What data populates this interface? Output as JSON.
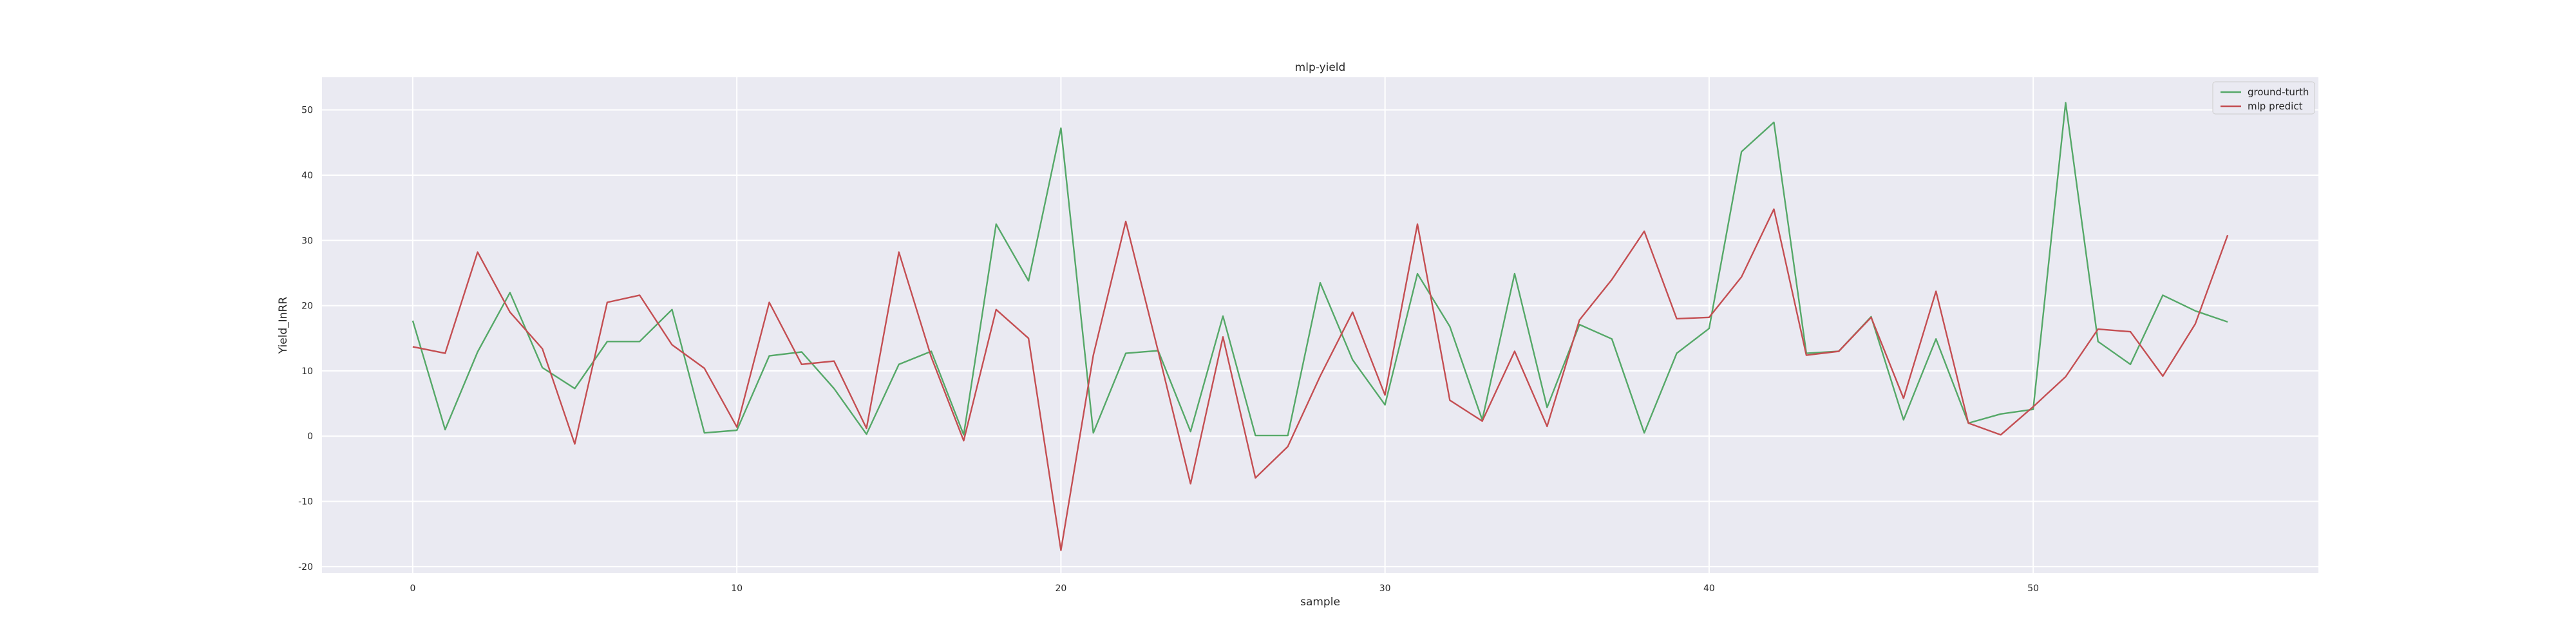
{
  "chart_data": {
    "type": "line",
    "title": "mlp-yield",
    "xlabel": "sample",
    "ylabel": "Yield_InRR",
    "xlim": [
      -2.8,
      58.8
    ],
    "ylim": [
      -21,
      55
    ],
    "xticks": [
      0,
      10,
      20,
      30,
      40,
      50
    ],
    "yticks": [
      -20,
      -10,
      0,
      10,
      20,
      30,
      40,
      50
    ],
    "grid": true,
    "legend_position": "top-right",
    "background_color": "#eaeaf2",
    "series": [
      {
        "name": "ground-turth",
        "color": "#55a868",
        "x": [
          0,
          1,
          2,
          3,
          4,
          5,
          6,
          7,
          8,
          9,
          10,
          11,
          12,
          13,
          14,
          15,
          16,
          17,
          18,
          19,
          20,
          21,
          22,
          23,
          24,
          25,
          26,
          27,
          28,
          29,
          30,
          31,
          32,
          33,
          34,
          35,
          36,
          37,
          38,
          39,
          40,
          41,
          42,
          43,
          44,
          45,
          46,
          47,
          48,
          49,
          50,
          51,
          52,
          53,
          54,
          55,
          56
        ],
        "values": [
          17.7,
          1.0,
          12.9,
          22.0,
          10.5,
          7.3,
          14.5,
          14.5,
          19.4,
          0.5,
          0.9,
          12.3,
          12.9,
          7.3,
          0.3,
          11.0,
          13.0,
          0.2,
          32.5,
          23.8,
          47.2,
          0.5,
          12.7,
          13.1,
          0.7,
          18.4,
          0.1,
          0.1,
          23.5,
          11.7,
          4.8,
          24.9,
          16.8,
          2.5,
          24.9,
          4.4,
          17.1,
          14.9,
          0.5,
          12.7,
          16.5,
          43.6,
          48.1,
          12.7,
          13.0,
          18.3,
          2.5,
          14.9,
          2.0,
          3.4,
          4.1,
          51.1,
          14.5,
          11.0,
          21.6,
          19.2,
          17.5
        ]
      },
      {
        "name": "mlp predict",
        "color": "#c44e52",
        "x": [
          0,
          1,
          2,
          3,
          4,
          5,
          6,
          7,
          8,
          9,
          10,
          11,
          12,
          13,
          14,
          15,
          16,
          17,
          18,
          19,
          20,
          21,
          22,
          23,
          24,
          25,
          26,
          27,
          28,
          29,
          30,
          31,
          32,
          33,
          34,
          35,
          36,
          37,
          38,
          39,
          40,
          41,
          42,
          43,
          44,
          45,
          46,
          47,
          48,
          49,
          50,
          51,
          52,
          53,
          54,
          55,
          56
        ],
        "values": [
          13.7,
          12.7,
          28.2,
          19.0,
          13.4,
          -1.2,
          20.5,
          21.6,
          14.0,
          10.4,
          1.4,
          20.5,
          11.0,
          11.5,
          1.2,
          28.2,
          12.1,
          -0.7,
          19.4,
          15.0,
          -17.5,
          12.4,
          32.9,
          13.0,
          -7.3,
          15.2,
          -6.4,
          -1.6,
          9.2,
          19.0,
          6.3,
          32.5,
          5.5,
          2.3,
          13.0,
          1.5,
          17.8,
          24.0,
          31.4,
          18.0,
          18.2,
          24.4,
          34.8,
          12.4,
          13.0,
          18.2,
          5.8,
          22.2,
          2.0,
          0.2,
          4.5,
          9.1,
          16.4,
          16.0,
          9.2,
          17.2,
          30.8
        ]
      }
    ]
  }
}
